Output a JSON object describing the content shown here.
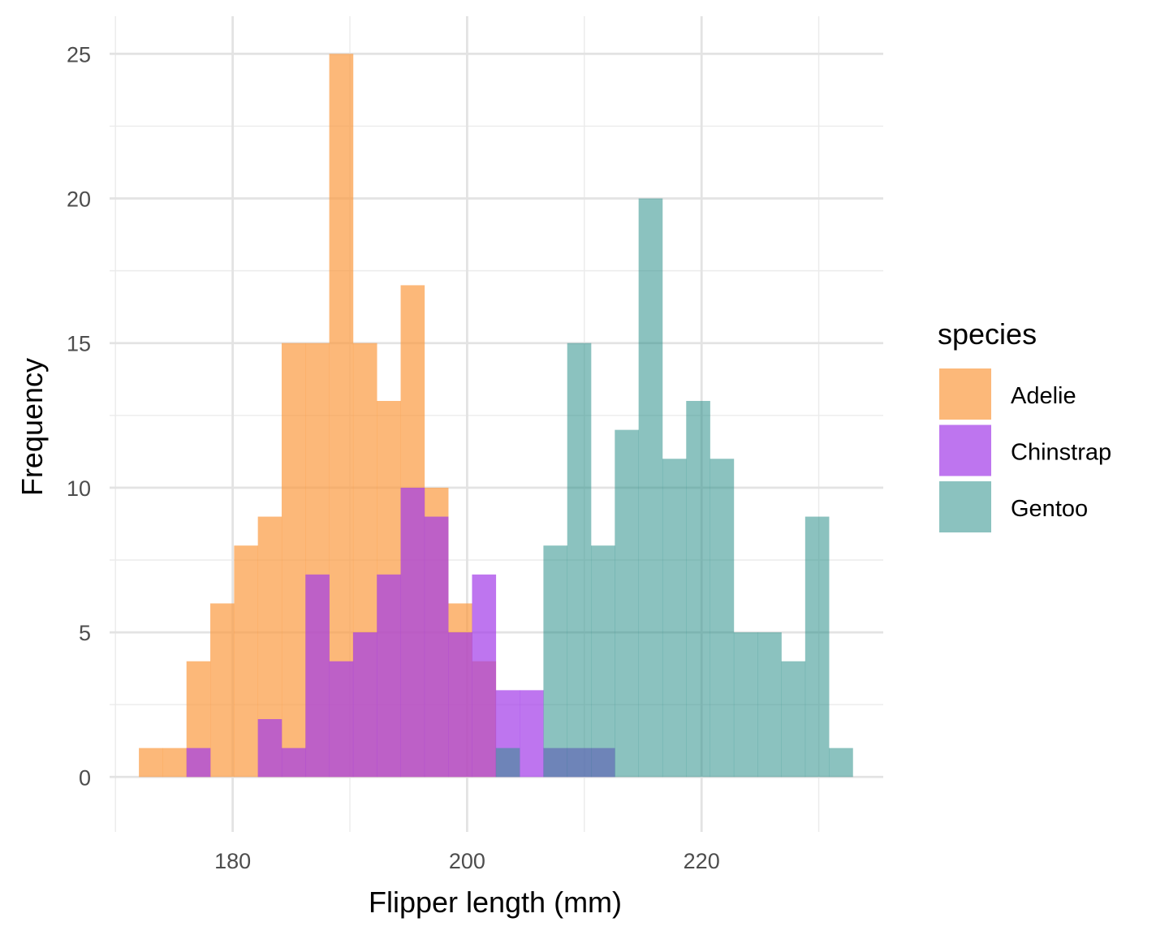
{
  "chart_data": {
    "type": "histogram",
    "xlabel": "Flipper length (mm)",
    "ylabel": "Frequency",
    "xlim": [
      169.5,
      235.5
    ],
    "ylim": [
      -1.9,
      26.3
    ],
    "x_ticks": [
      180,
      200,
      220
    ],
    "x_minor_ticks": [
      170,
      190,
      210,
      230
    ],
    "y_ticks": [
      0,
      5,
      10,
      15,
      20,
      25
    ],
    "y_minor_ticks": [
      2.5,
      7.5,
      12.5,
      17.5,
      22.5
    ],
    "grid": true,
    "bin_width": 2.03,
    "legend": {
      "title": "species",
      "placement": "right",
      "entries": [
        "Adelie",
        "Chinstrap",
        "Gentoo"
      ]
    },
    "series": [
      {
        "name": "Adelie",
        "color": "#fb9a40",
        "opacity": 0.7,
        "bin_starts": [
          172,
          174.03,
          176.06,
          178.09,
          180.12,
          182.15,
          184.18,
          186.21,
          188.24,
          190.27,
          192.3,
          194.33,
          196.36,
          198.39,
          200.42
        ],
        "counts": [
          1,
          1,
          4,
          6,
          8,
          9,
          15,
          15,
          25,
          15,
          13,
          17,
          10,
          6,
          4
        ]
      },
      {
        "name": "Chinstrap",
        "color": "#a23be8",
        "opacity": 0.7,
        "bin_starts": [
          176.06,
          178.09,
          180.12,
          182.15,
          184.18,
          186.21,
          188.24,
          190.27,
          192.3,
          194.33,
          196.36,
          198.39,
          200.42,
          202.45,
          204.48,
          206.51,
          208.54,
          210.57
        ],
        "counts": [
          1,
          0,
          0,
          2,
          1,
          7,
          4,
          5,
          7,
          10,
          9,
          5,
          7,
          3,
          3,
          1,
          1,
          1
        ]
      },
      {
        "name": "Gentoo",
        "color": "#2c8f8a",
        "opacity": 0.55,
        "bin_starts": [
          202.45,
          204.48,
          206.51,
          208.54,
          210.57,
          212.6,
          214.63,
          216.66,
          218.69,
          220.72,
          222.75,
          224.78,
          226.81,
          228.84,
          230.87
        ],
        "counts": [
          1,
          0,
          8,
          15,
          8,
          12,
          20,
          11,
          13,
          11,
          5,
          5,
          4,
          9,
          1
        ]
      }
    ]
  }
}
